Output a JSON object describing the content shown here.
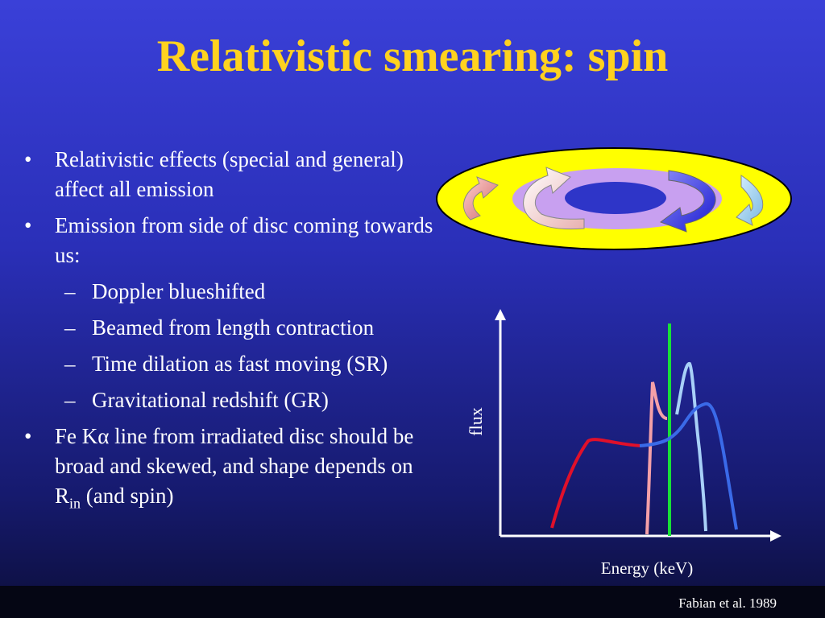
{
  "slide": {
    "title": "Relativistic smearing: spin",
    "bullets": [
      {
        "text": "Relativistic effects (special and general) affect all emission"
      },
      {
        "text": "Emission from side of disc coming towards us:"
      }
    ],
    "subbullets": [
      {
        "text": "Doppler blueshifted"
      },
      {
        "text": "Beamed from length contraction"
      },
      {
        "text": "Time dilation as fast moving (SR)"
      },
      {
        "text": "Gravitational redshift (GR)"
      }
    ],
    "last_bullet": {
      "before_alpha": "Fe K",
      "alpha": "α",
      "after_alpha": " line from irradiated disc should be broad and skewed, and shape depends on R",
      "subscript": "in",
      "after_sub": " (and spin)"
    },
    "bullet_marker": "•",
    "sub_marker": "–",
    "credit": "Fabian et al. 1989"
  },
  "diagram": {
    "disc_colors": {
      "outer": "#ffff00",
      "inner": "#c8a0f0",
      "hole": "#2e35c8"
    },
    "arrows": [
      {
        "name": "far-left-arrow",
        "color": "#f0a0a0"
      },
      {
        "name": "inner-left-arrow",
        "color": "#ffffff"
      },
      {
        "name": "inner-right-arrow",
        "color": "#3a3af0"
      },
      {
        "name": "far-right-arrow",
        "color": "#a0d8f0"
      }
    ]
  },
  "plot": {
    "xlabel": "Energy (keV)",
    "ylabel": "flux",
    "line_colors": {
      "red": "#e0102a",
      "pink": "#f4a0a8",
      "green": "#18e038",
      "lightblue": "#a8d0f8",
      "blue": "#3a6ae8"
    }
  }
}
